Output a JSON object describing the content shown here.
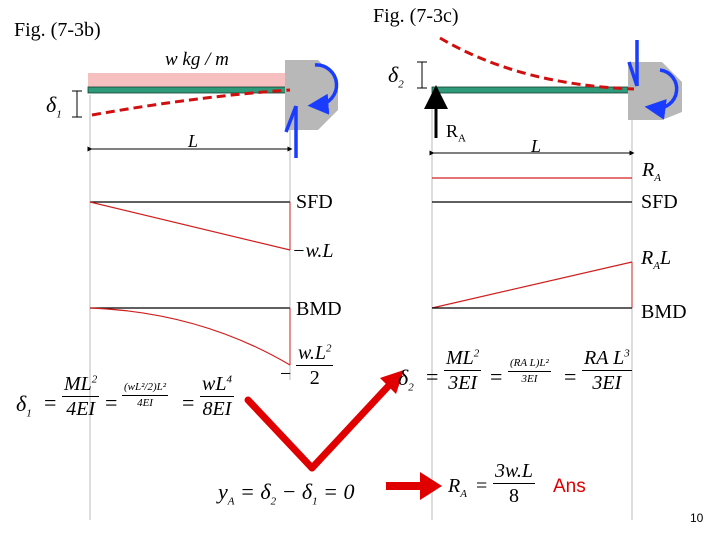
{
  "figures": {
    "left_title": "Fig. (7-3b)",
    "right_title": "Fig. (7-3c)"
  },
  "left_beam": {
    "load_label": "w kg / m",
    "deflection_label": "δ",
    "deflection_sub": "1",
    "span_label": "L",
    "sfd_label": "SFD",
    "sfd_value": "−w.L",
    "bmd_label": "BMD",
    "bmd_value_num": "w.L",
    "bmd_value_num_sup": "2",
    "bmd_value_den": "2",
    "bmd_value_sign": "−"
  },
  "right_beam": {
    "deflection_label": "δ",
    "deflection_sub": "2",
    "reaction_label": "R",
    "reaction_sub": "A",
    "span_label": "L",
    "sfd_value": "R",
    "sfd_value_sub": "A",
    "sfd_label": "SFD",
    "bmd_value": "R",
    "bmd_value_sub": "A",
    "bmd_value_tail": "L",
    "bmd_label": "BMD"
  },
  "equations": {
    "delta1": {
      "lhs": "δ",
      "lhs_sub": "1",
      "f1_num": "ML",
      "f1_num_sup": "2",
      "f1_den": "4EI",
      "f2_num": "(wL²/2)L²",
      "f2_den": "4EI",
      "f3_num": "wL",
      "f3_num_sup": "4",
      "f3_den": "8EI",
      "eq": "="
    },
    "delta2": {
      "lhs": "δ",
      "lhs_sub": "2",
      "f1_num": "ML",
      "f1_num_sup": "2",
      "f1_den": "3EI",
      "f2_num": "(RA L)L²",
      "f2_den": "3EI",
      "f3_num": "RA L",
      "f3_num_sup": "3",
      "f3_den": "3EI",
      "eq": "="
    },
    "compat": {
      "text": "y",
      "sub": "A",
      "rest": " = δ",
      "sub2": "2",
      "rest2": " − δ",
      "sub3": "1",
      "rest3": " = 0"
    },
    "result": {
      "lhs": "R",
      "lhs_sub": "A",
      "eq": "=",
      "num": "3w.L",
      "den": "8"
    }
  },
  "answer_label": "Ans",
  "page_number": "10",
  "colors": {
    "beam": "#2e9a7a",
    "load": "#f6c0c0",
    "wall": "#b8b8b8",
    "moment": "#1a3cff",
    "deflection": "#d01010",
    "diagram": "#d02020",
    "arrow": "#e00000"
  }
}
